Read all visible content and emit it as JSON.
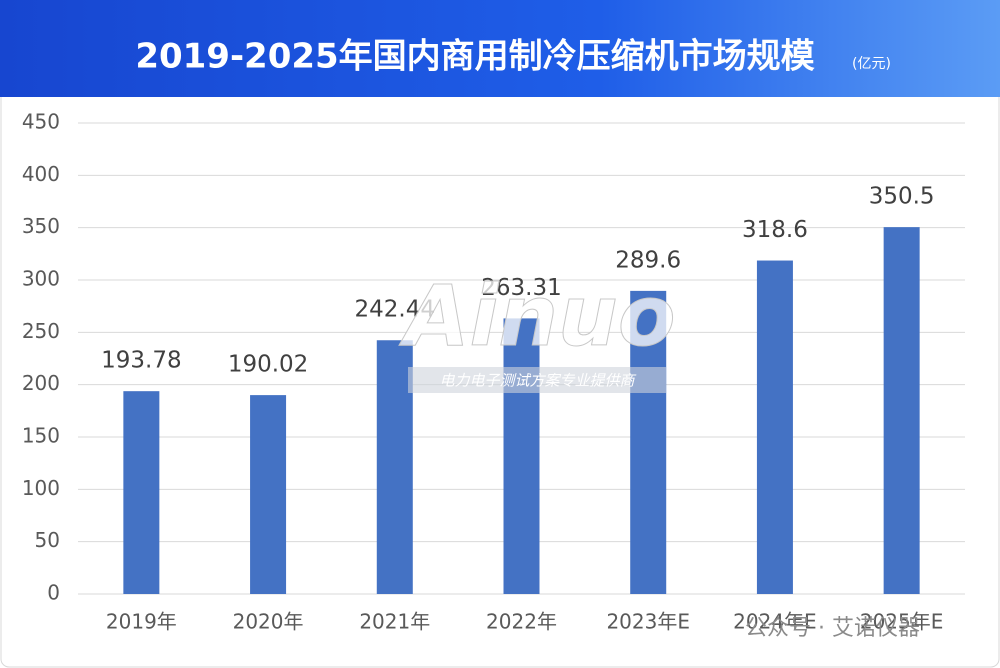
{
  "chart_data": {
    "type": "bar",
    "title": "2019-2025年国内商用制冷压缩机市场规模",
    "subtitle": "(亿元)",
    "categories": [
      "2019年",
      "2020年",
      "2021年",
      "2022年",
      "2023年E",
      "2024年E",
      "2025年E"
    ],
    "values": [
      193.78,
      190.02,
      242.44,
      263.31,
      289.6,
      318.6,
      350.5
    ],
    "color": "#4472c4",
    "ylim": [
      0,
      450
    ],
    "yticks": [
      0,
      50,
      100,
      150,
      200,
      250,
      300,
      350,
      400,
      450
    ],
    "grid": true,
    "annotations": [
      "Ainuo",
      "电力电子测试方案专业提供商",
      "公众号 · 艾诺仪器"
    ]
  }
}
